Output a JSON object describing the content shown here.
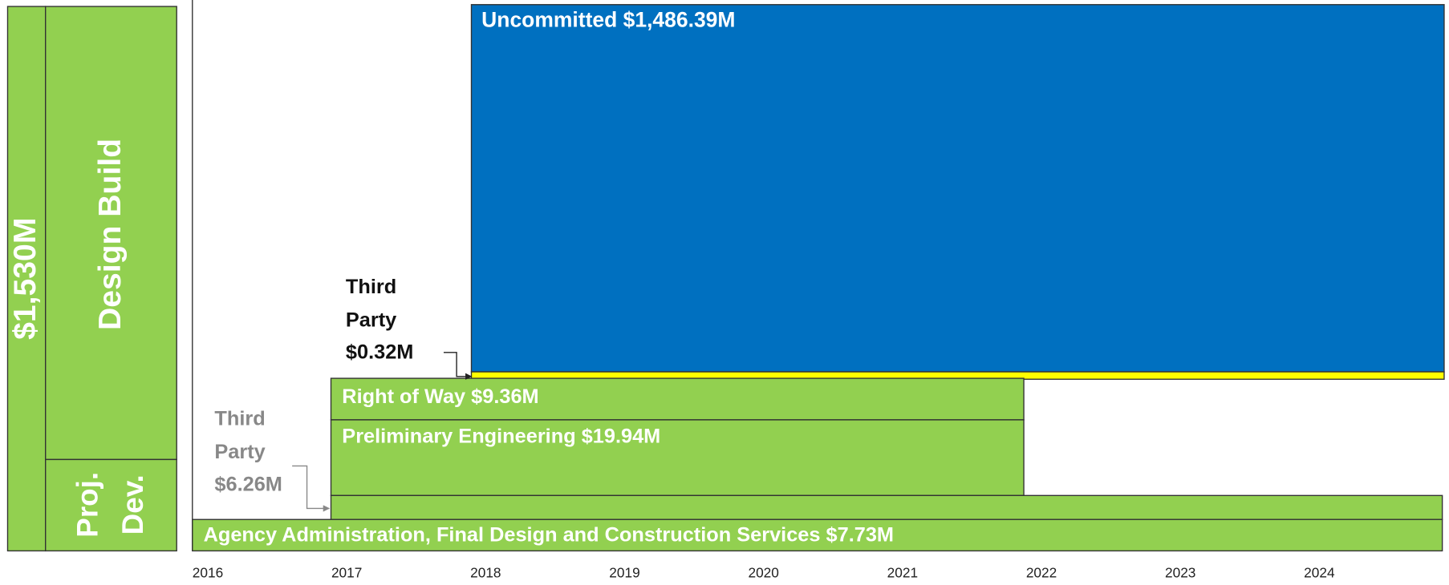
{
  "sidebar": {
    "total": "$1,530M",
    "design_build": "Design Build",
    "proj_dev": [
      "Proj.",
      "Dev."
    ]
  },
  "blocks": {
    "uncommitted": "Uncommitted $1,486.39M",
    "right_of_way": "Right of Way $9.36M",
    "preliminary_engineering": "Preliminary Engineering $19.94M",
    "agency": "Agency Administration, Final Design and Construction Services $7.73M"
  },
  "callouts": {
    "third_party_top": [
      "Third",
      "Party",
      "$0.32M"
    ],
    "third_party_bottom": [
      "Third",
      "Party",
      "$6.26M"
    ]
  },
  "years": [
    "2016",
    "2017",
    "2018",
    "2019",
    "2020",
    "2021",
    "2022",
    "2023",
    "2024"
  ]
}
